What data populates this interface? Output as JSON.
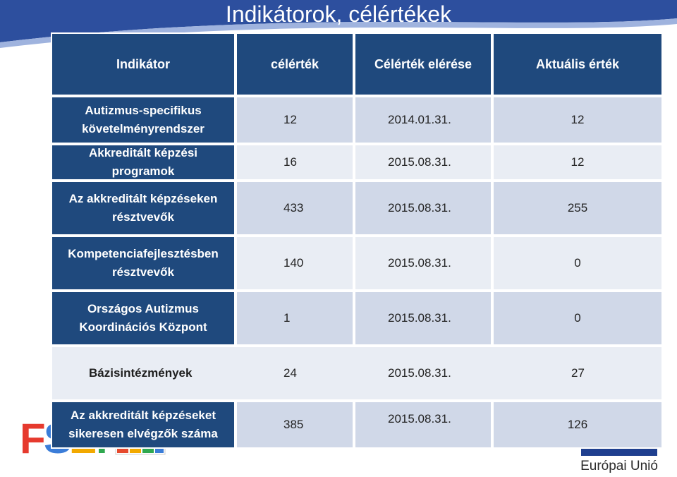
{
  "slide": {
    "title": "Indikátorok, célértékek"
  },
  "table": {
    "headers": [
      "Indikátor",
      "célérték",
      "Célérték elérése",
      "Aktuális érték"
    ],
    "rows": [
      {
        "indicator": "Autizmus-specifikus követelményrendszer",
        "target": "12",
        "deadline": "2014.01.31.",
        "actual": "12"
      },
      {
        "indicator": "Akkreditált képzési programok",
        "target": "16",
        "deadline": "2015.08.31.",
        "actual": "12"
      },
      {
        "indicator": "Az akkreditált képzéseken résztvevők",
        "target": "433",
        "deadline": "2015.08.31.",
        "actual": "255"
      },
      {
        "indicator": "Kompetenciafejlesztésben résztvevők",
        "target": "140",
        "deadline": "2015.08.31.",
        "actual": "0"
      },
      {
        "indicator": "Országos Autizmus Koordinációs Központ",
        "target": "1",
        "deadline": "2015.08.31.",
        "actual": "0"
      },
      {
        "indicator": "Bázisintézmények",
        "target": "24",
        "deadline": "2015.08.31.",
        "actual": "27"
      },
      {
        "indicator": "Az akkreditált képzéseket sikeresen elvégzők száma",
        "target": "385",
        "deadline": "2015.08.31.",
        "actual": "126"
      }
    ]
  },
  "footer": {
    "left_logo": "FSZK",
    "right_logo_text": "Európai Unió"
  },
  "colors": {
    "header_bg": "#1f497d",
    "row_odd": "#d0d8e8",
    "row_even": "#e9edf4",
    "band": "#2d4f9e"
  }
}
